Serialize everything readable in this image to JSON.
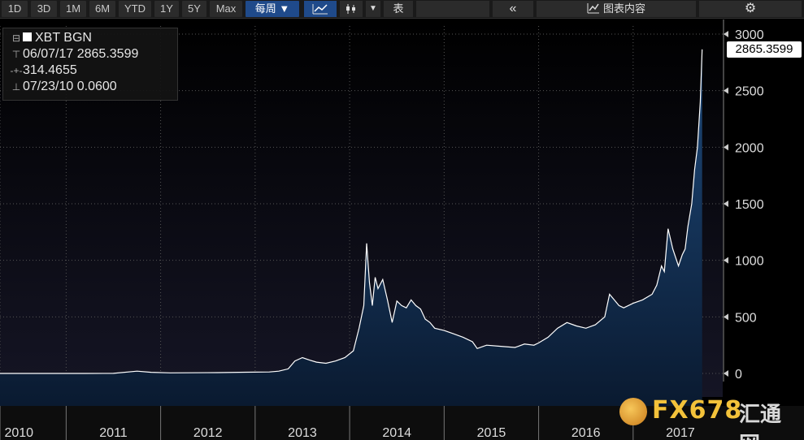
{
  "toolbar": {
    "ranges": [
      "1D",
      "3D",
      "1M",
      "6M",
      "YTD",
      "1Y",
      "5Y",
      "Max"
    ],
    "frequency": "每周 ▼",
    "table_label": "表",
    "collapse_icon": "double-chevron-left-icon",
    "chart_content_label": "图表内容",
    "settings_icon": "gear-icon"
  },
  "legend": {
    "ticker": "XBT BGN",
    "high": "06/07/17 2865.3599",
    "avg": "314.4655",
    "low": "07/23/10 0.0600"
  },
  "price_tag": "2865.3599",
  "watermark": {
    "brand": "FX678",
    "cn": "汇通网"
  },
  "colors": {
    "line": "#ffffff",
    "area_top": "#1e4a7c",
    "area_bottom": "#0a1a30",
    "grid": "#555555",
    "background": "#000000"
  },
  "chart_data": {
    "type": "area",
    "title": "",
    "xlabel": "",
    "ylabel": "",
    "ylim": [
      0,
      3000
    ],
    "yticks": [
      0,
      500,
      1000,
      1500,
      2000,
      2500,
      3000
    ],
    "xlim": [
      2010.0,
      2017.45
    ],
    "xtick_labels": [
      "2010",
      "2011",
      "2012",
      "2013",
      "2014",
      "2015",
      "2016",
      "2017"
    ],
    "xtick_positions": [
      2010.2,
      2011.2,
      2012.2,
      2013.2,
      2014.2,
      2015.2,
      2016.2,
      2017.2
    ],
    "grid": true,
    "legend": "top-left",
    "series": [
      {
        "name": "XBT BGN",
        "x": [
          2010.0,
          2010.55,
          2010.9,
          2011.2,
          2011.45,
          2011.6,
          2011.8,
          2012.0,
          2012.3,
          2012.6,
          2012.85,
          2012.95,
          2013.05,
          2013.12,
          2013.2,
          2013.27,
          2013.35,
          2013.45,
          2013.55,
          2013.65,
          2013.74,
          2013.8,
          2013.85,
          2013.88,
          2013.91,
          2013.94,
          2013.97,
          2014.0,
          2014.05,
          2014.1,
          2014.15,
          2014.2,
          2014.25,
          2014.3,
          2014.35,
          2014.4,
          2014.45,
          2014.5,
          2014.55,
          2014.6,
          2014.7,
          2014.8,
          2014.9,
          2015.0,
          2015.05,
          2015.15,
          2015.3,
          2015.45,
          2015.55,
          2015.65,
          2015.7,
          2015.8,
          2015.9,
          2016.0,
          2016.1,
          2016.2,
          2016.3,
          2016.4,
          2016.45,
          2016.5,
          2016.55,
          2016.6,
          2016.7,
          2016.8,
          2016.9,
          2016.95,
          2017.0,
          2017.03,
          2017.07,
          2017.12,
          2017.18,
          2017.22,
          2017.25,
          2017.28,
          2017.32,
          2017.35,
          2017.38,
          2017.41,
          2017.43
        ],
        "values": [
          0.06,
          0.1,
          0.3,
          1,
          20,
          10,
          5,
          6,
          7,
          11,
          13,
          20,
          40,
          110,
          140,
          120,
          100,
          90,
          110,
          140,
          200,
          400,
          600,
          1150,
          800,
          600,
          850,
          750,
          830,
          650,
          450,
          640,
          600,
          580,
          650,
          600,
          570,
          480,
          450,
          400,
          380,
          350,
          320,
          280,
          220,
          250,
          240,
          230,
          260,
          250,
          270,
          320,
          400,
          450,
          420,
          400,
          430,
          500,
          700,
          650,
          600,
          580,
          620,
          650,
          700,
          780,
          950,
          900,
          1280,
          1100,
          950,
          1050,
          1100,
          1300,
          1500,
          1800,
          2000,
          2400,
          2865
        ]
      }
    ]
  }
}
